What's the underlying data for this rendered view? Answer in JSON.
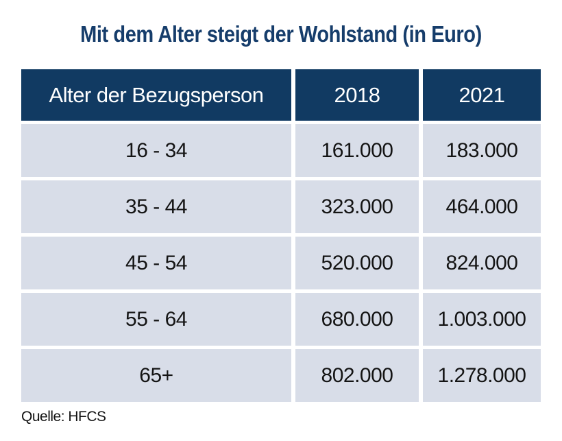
{
  "chart_data": {
    "type": "table",
    "title": "Mit dem Alter steigt der Wohlstand (in Euro)",
    "columns": [
      "Alter der Bezugsperson",
      "2018",
      "2021"
    ],
    "rows": [
      [
        "16 - 34",
        "161.000",
        "183.000"
      ],
      [
        "35 - 44",
        "323.000",
        "464.000"
      ],
      [
        "45 - 54",
        "520.000",
        "824.000"
      ],
      [
        "55 - 64",
        "680.000",
        "1.003.000"
      ],
      [
        "65+",
        "802.000",
        "1.278.000"
      ]
    ],
    "source": "Quelle: HFCS"
  },
  "colors": {
    "header_bg": "#113a62",
    "header_text": "#ffffff",
    "row_bg": "#d8dde8",
    "title_text": "#163d6b",
    "body_text": "#141414",
    "background": "#ffffff"
  }
}
